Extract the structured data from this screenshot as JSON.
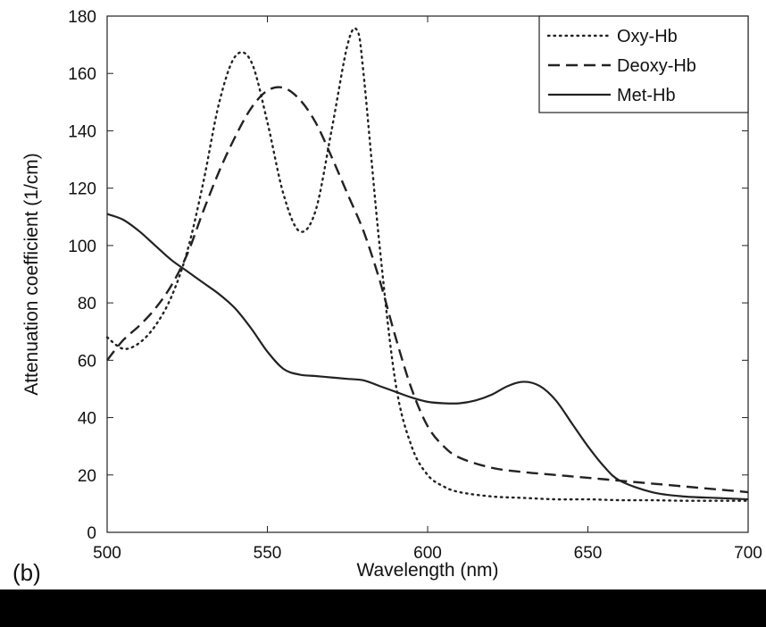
{
  "panel_label": "(b)",
  "chart_data": {
    "type": "line",
    "title": "",
    "xlabel": "Wavelength (nm)",
    "ylabel": "Attenuation coefficient (1/cm)",
    "xlim": [
      500,
      700
    ],
    "ylim": [
      0,
      180
    ],
    "xticks": [
      500,
      550,
      600,
      650,
      700
    ],
    "xtick_labels": [
      "500",
      "550",
      "600",
      "650",
      "700"
    ],
    "yticks": [
      0,
      20,
      40,
      60,
      80,
      100,
      120,
      140,
      160,
      180
    ],
    "ytick_labels": [
      "0",
      "20",
      "40",
      "60",
      "80",
      "100",
      "120",
      "140",
      "160",
      "180"
    ],
    "legend_position": "top-right",
    "series": [
      {
        "name": "Oxy-Hb",
        "style": "dotted",
        "x": [
          500,
          505,
          510,
          515,
          520,
          525,
          530,
          535,
          540,
          545,
          550,
          555,
          560,
          565,
          570,
          575,
          578,
          580,
          585,
          590,
          595,
          600,
          605,
          610,
          620,
          630,
          640,
          650,
          660,
          670,
          680,
          690,
          700
        ],
        "y": [
          68,
          64,
          66,
          72,
          82,
          98,
          122,
          150,
          166,
          164,
          143,
          118,
          105,
          112,
          140,
          170,
          175,
          160,
          100,
          52,
          30,
          20,
          16,
          14,
          12.5,
          12,
          11.5,
          11.5,
          11.2,
          11.2,
          11,
          11,
          11
        ]
      },
      {
        "name": "Deoxy-Hb",
        "style": "dashed",
        "x": [
          500,
          505,
          510,
          515,
          520,
          525,
          530,
          535,
          540,
          545,
          550,
          555,
          560,
          565,
          570,
          575,
          580,
          585,
          590,
          595,
          600,
          605,
          610,
          620,
          630,
          640,
          650,
          660,
          670,
          680,
          690,
          700
        ],
        "y": [
          60,
          67,
          72,
          78,
          86,
          97,
          112,
          126,
          138,
          148,
          154,
          155,
          151,
          143,
          131,
          118,
          105,
          88,
          68,
          50,
          37,
          30,
          26,
          22.5,
          21,
          20,
          19,
          18,
          17,
          16,
          15,
          14
        ]
      },
      {
        "name": "Met-Hb",
        "style": "solid",
        "x": [
          500,
          505,
          510,
          515,
          520,
          525,
          530,
          535,
          540,
          545,
          550,
          555,
          560,
          565,
          570,
          575,
          580,
          585,
          590,
          595,
          600,
          605,
          610,
          615,
          620,
          625,
          630,
          635,
          640,
          645,
          650,
          655,
          660,
          670,
          680,
          690,
          700
        ],
        "y": [
          111,
          109,
          105,
          100,
          95,
          91,
          87,
          83,
          78,
          71,
          63,
          57,
          55,
          54.5,
          54,
          53.5,
          53,
          51,
          49,
          47,
          45.5,
          45,
          45,
          46,
          48,
          51,
          52.5,
          51,
          46,
          38,
          30,
          23,
          18,
          14,
          12.5,
          12,
          11.5
        ]
      }
    ]
  }
}
